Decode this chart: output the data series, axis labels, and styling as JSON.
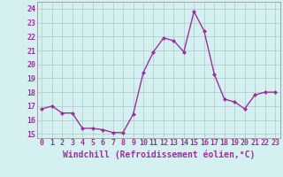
{
  "x": [
    0,
    1,
    2,
    3,
    4,
    5,
    6,
    7,
    8,
    9,
    10,
    11,
    12,
    13,
    14,
    15,
    16,
    17,
    18,
    19,
    20,
    21,
    22,
    23
  ],
  "y": [
    16.8,
    17.0,
    16.5,
    16.5,
    15.4,
    15.4,
    15.3,
    15.1,
    15.1,
    16.4,
    19.4,
    20.9,
    21.9,
    21.7,
    20.9,
    23.8,
    22.4,
    19.3,
    17.5,
    17.3,
    16.8,
    17.8,
    18.0,
    18.0
  ],
  "line_color": "#993399",
  "marker": "D",
  "marker_size": 2.0,
  "bg_color": "#d4f0f0",
  "grid_color": "#b0c8c8",
  "xlabel": "Windchill (Refroidissement éolien,°C)",
  "xlabel_fontsize": 7.0,
  "xtick_labels": [
    "0",
    "1",
    "2",
    "3",
    "4",
    "5",
    "6",
    "7",
    "8",
    "9",
    "10",
    "11",
    "12",
    "13",
    "14",
    "15",
    "16",
    "17",
    "18",
    "19",
    "20",
    "21",
    "22",
    "23"
  ],
  "ytick_labels": [
    "15",
    "16",
    "17",
    "18",
    "19",
    "20",
    "21",
    "22",
    "23",
    "24"
  ],
  "ytick_values": [
    15,
    16,
    17,
    18,
    19,
    20,
    21,
    22,
    23,
    24
  ],
  "ylim": [
    14.7,
    24.5
  ],
  "xlim": [
    -0.5,
    23.5
  ],
  "tick_color": "#993399",
  "tick_fontsize": 6.0,
  "linewidth": 1.0
}
